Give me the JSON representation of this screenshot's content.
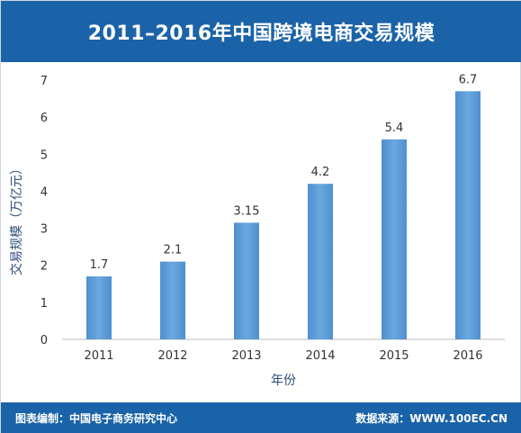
{
  "header": {
    "title": "2011–2016年中国跨境电商交易规模"
  },
  "footer": {
    "left": "图表编制：中国电子商务研究中心",
    "right": "数据来源：WWW.100EC.CN"
  },
  "chart_data": {
    "type": "bar",
    "title": "2011–2016年中国跨境电商交易规模",
    "xlabel": "年份",
    "ylabel": "交易规模（万亿元）",
    "categories": [
      "2011",
      "2012",
      "2013",
      "2014",
      "2015",
      "2016"
    ],
    "values": [
      1.7,
      2.1,
      3.15,
      4.2,
      5.4,
      6.7
    ],
    "data_labels": [
      "1.7",
      "2.1",
      "3.15",
      "4.2",
      "5.4",
      "6.7"
    ],
    "ylim": [
      0,
      7
    ],
    "yticks": [
      0,
      1,
      2,
      3,
      4,
      5,
      6,
      7
    ],
    "grid": false,
    "legend": "none",
    "bar_color": "#5b9bd5"
  }
}
